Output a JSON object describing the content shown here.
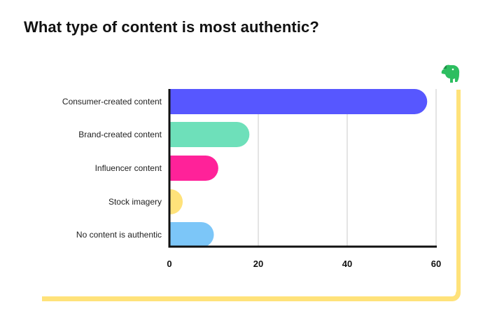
{
  "chart_data": {
    "type": "bar",
    "orientation": "horizontal",
    "title": "What type of content is most authentic?",
    "categories": [
      "Consumer-created content",
      "Brand-created content",
      "Influencer content",
      "Stock imagery",
      "No content is authentic"
    ],
    "values": [
      58,
      18,
      11,
      3,
      10
    ],
    "colors": [
      "#5757FF",
      "#6EE0BA",
      "#FF2299",
      "#FFE27A",
      "#7CC6F8"
    ],
    "xlim": [
      0,
      60
    ],
    "xticks": [
      "0",
      "20",
      "40",
      "60"
    ],
    "grid": true,
    "legend": "none"
  },
  "logo": {
    "icon": "elephant-logo-icon",
    "color": "#2DBE60"
  },
  "frame_color": "#FFE27A"
}
